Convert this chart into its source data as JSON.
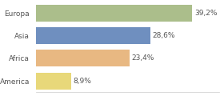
{
  "categories": [
    "Europa",
    "Asia",
    "Africa",
    "America"
  ],
  "values": [
    39.2,
    28.6,
    23.4,
    8.9
  ],
  "labels": [
    "39,2%",
    "28,6%",
    "23,4%",
    "8,9%"
  ],
  "bar_colors": [
    "#abbe8b",
    "#6f8fbf",
    "#e8b882",
    "#e8d87a"
  ],
  "background_color": "#ffffff",
  "xlim": [
    0,
    46
  ],
  "bar_height": 0.75,
  "label_fontsize": 6.5,
  "category_fontsize": 6.5,
  "spine_color": "#cccccc"
}
